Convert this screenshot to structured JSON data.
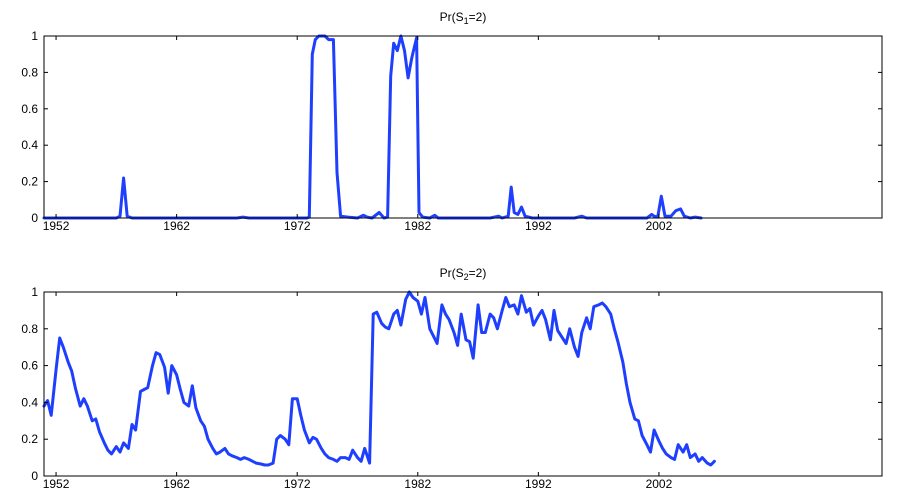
{
  "chart_data": [
    {
      "type": "line",
      "title": "Pr(S",
      "title_sub": "1",
      "title_end": "=2)",
      "xlabel": "",
      "ylabel": "",
      "xlim": [
        1951,
        2020.5
      ],
      "ylim": [
        0,
        1
      ],
      "x_ticks": [
        1952,
        1962,
        1972,
        1982,
        1992,
        2002
      ],
      "x_tick_labels": [
        "1952",
        "1962",
        "1972",
        "1982",
        "1992",
        "2002"
      ],
      "y_ticks": [
        0,
        0.2,
        0.4,
        0.6,
        0.8,
        1
      ],
      "y_tick_labels": [
        "0",
        "0.2",
        "0.4",
        "0.6",
        "0.8",
        "1"
      ],
      "grid": false,
      "color": "#1f3fff",
      "points": [
        [
          1951.0,
          0
        ],
        [
          1955.0,
          0
        ],
        [
          1957.0,
          0
        ],
        [
          1957.3,
          0.01
        ],
        [
          1957.6,
          0.22
        ],
        [
          1957.9,
          0.01
        ],
        [
          1958.3,
          0
        ],
        [
          1962.0,
          0
        ],
        [
          1967.0,
          0
        ],
        [
          1967.5,
          0.005
        ],
        [
          1968.0,
          0
        ],
        [
          1972.8,
          0
        ],
        [
          1973.0,
          0.005
        ],
        [
          1973.25,
          0.9
        ],
        [
          1973.5,
          0.98
        ],
        [
          1973.8,
          1.0
        ],
        [
          1974.0,
          1.0
        ],
        [
          1974.3,
          1.0
        ],
        [
          1974.6,
          0.98
        ],
        [
          1975.0,
          0.98
        ],
        [
          1975.3,
          0.25
        ],
        [
          1975.6,
          0.01
        ],
        [
          1976.2,
          0.005
        ],
        [
          1977.0,
          0
        ],
        [
          1977.5,
          0.015
        ],
        [
          1977.8,
          0.005
        ],
        [
          1978.2,
          0
        ],
        [
          1978.8,
          0.03
        ],
        [
          1979.2,
          0
        ],
        [
          1979.5,
          0.005
        ],
        [
          1979.75,
          0.78
        ],
        [
          1980.0,
          0.96
        ],
        [
          1980.3,
          0.92
        ],
        [
          1980.6,
          1.0
        ],
        [
          1980.9,
          0.92
        ],
        [
          1981.2,
          0.77
        ],
        [
          1981.5,
          0.88
        ],
        [
          1981.9,
          0.99
        ],
        [
          1982.1,
          0.03
        ],
        [
          1982.4,
          0.005
        ],
        [
          1983.0,
          0
        ],
        [
          1983.4,
          0.015
        ],
        [
          1983.7,
          0
        ],
        [
          1985.0,
          0
        ],
        [
          1988.0,
          0
        ],
        [
          1988.7,
          0.01
        ],
        [
          1989.0,
          0
        ],
        [
          1989.5,
          0.01
        ],
        [
          1989.75,
          0.17
        ],
        [
          1990.0,
          0.03
        ],
        [
          1990.3,
          0.02
        ],
        [
          1990.6,
          0.06
        ],
        [
          1990.9,
          0.01
        ],
        [
          1991.5,
          0
        ],
        [
          1995.0,
          0
        ],
        [
          1995.6,
          0.01
        ],
        [
          1996.0,
          0
        ],
        [
          2001.0,
          0
        ],
        [
          2001.4,
          0.02
        ],
        [
          2001.6,
          0.01
        ],
        [
          2001.9,
          0.005
        ],
        [
          2002.2,
          0.12
        ],
        [
          2002.5,
          0.01
        ],
        [
          2003.0,
          0.01
        ],
        [
          2003.4,
          0.04
        ],
        [
          2003.8,
          0.05
        ],
        [
          2004.1,
          0.01
        ],
        [
          2004.6,
          0
        ],
        [
          2005.0,
          0.005
        ],
        [
          2005.5,
          0
        ]
      ]
    },
    {
      "type": "line",
      "title": "Pr(S",
      "title_sub": "2",
      "title_end": "=2)",
      "xlabel": "",
      "ylabel": "",
      "xlim": [
        1951,
        2020.5
      ],
      "ylim": [
        0,
        1
      ],
      "x_ticks": [
        1952,
        1962,
        1972,
        1982,
        1992,
        2002
      ],
      "x_tick_labels": [
        "1952",
        "1962",
        "1972",
        "1982",
        "1992",
        "2002"
      ],
      "y_ticks": [
        0,
        0.2,
        0.4,
        0.6,
        0.8,
        1
      ],
      "y_tick_labels": [
        "0",
        "0.2",
        "0.4",
        "0.6",
        "0.8",
        "1"
      ],
      "grid": false,
      "color": "#1f3fff",
      "points": [
        [
          1951.0,
          0.38
        ],
        [
          1951.3,
          0.41
        ],
        [
          1951.6,
          0.33
        ],
        [
          1952.0,
          0.58
        ],
        [
          1952.3,
          0.75
        ],
        [
          1952.6,
          0.7
        ],
        [
          1953.0,
          0.62
        ],
        [
          1953.3,
          0.57
        ],
        [
          1953.6,
          0.48
        ],
        [
          1954.0,
          0.38
        ],
        [
          1954.3,
          0.42
        ],
        [
          1954.6,
          0.38
        ],
        [
          1955.0,
          0.3
        ],
        [
          1955.3,
          0.31
        ],
        [
          1955.6,
          0.24
        ],
        [
          1956.0,
          0.18
        ],
        [
          1956.3,
          0.14
        ],
        [
          1956.6,
          0.12
        ],
        [
          1957.0,
          0.16
        ],
        [
          1957.3,
          0.13
        ],
        [
          1957.6,
          0.18
        ],
        [
          1958.0,
          0.15
        ],
        [
          1958.3,
          0.28
        ],
        [
          1958.6,
          0.25
        ],
        [
          1959.0,
          0.46
        ],
        [
          1959.3,
          0.47
        ],
        [
          1959.6,
          0.48
        ],
        [
          1960.0,
          0.6
        ],
        [
          1960.3,
          0.67
        ],
        [
          1960.6,
          0.66
        ],
        [
          1961.0,
          0.59
        ],
        [
          1961.3,
          0.45
        ],
        [
          1961.6,
          0.6
        ],
        [
          1962.0,
          0.55
        ],
        [
          1962.3,
          0.47
        ],
        [
          1962.6,
          0.4
        ],
        [
          1963.0,
          0.38
        ],
        [
          1963.3,
          0.49
        ],
        [
          1963.6,
          0.37
        ],
        [
          1964.0,
          0.3
        ],
        [
          1964.3,
          0.27
        ],
        [
          1964.6,
          0.2
        ],
        [
          1965.0,
          0.15
        ],
        [
          1965.3,
          0.12
        ],
        [
          1965.6,
          0.13
        ],
        [
          1966.0,
          0.15
        ],
        [
          1966.3,
          0.12
        ],
        [
          1966.6,
          0.11
        ],
        [
          1967.0,
          0.1
        ],
        [
          1967.3,
          0.09
        ],
        [
          1967.6,
          0.1
        ],
        [
          1968.0,
          0.09
        ],
        [
          1968.3,
          0.08
        ],
        [
          1968.6,
          0.07
        ],
        [
          1969.0,
          0.065
        ],
        [
          1969.3,
          0.06
        ],
        [
          1969.6,
          0.06
        ],
        [
          1970.0,
          0.07
        ],
        [
          1970.3,
          0.2
        ],
        [
          1970.6,
          0.22
        ],
        [
          1971.0,
          0.2
        ],
        [
          1971.3,
          0.17
        ],
        [
          1971.6,
          0.42
        ],
        [
          1972.0,
          0.42
        ],
        [
          1972.3,
          0.33
        ],
        [
          1972.6,
          0.25
        ],
        [
          1973.0,
          0.18
        ],
        [
          1973.3,
          0.21
        ],
        [
          1973.6,
          0.2
        ],
        [
          1974.0,
          0.15
        ],
        [
          1974.3,
          0.12
        ],
        [
          1974.6,
          0.1
        ],
        [
          1975.0,
          0.09
        ],
        [
          1975.3,
          0.08
        ],
        [
          1975.6,
          0.1
        ],
        [
          1976.0,
          0.1
        ],
        [
          1976.3,
          0.09
        ],
        [
          1976.6,
          0.14
        ],
        [
          1977.0,
          0.1
        ],
        [
          1977.3,
          0.08
        ],
        [
          1977.6,
          0.15
        ],
        [
          1978.0,
          0.07
        ],
        [
          1978.3,
          0.88
        ],
        [
          1978.6,
          0.89
        ],
        [
          1979.0,
          0.83
        ],
        [
          1979.3,
          0.81
        ],
        [
          1979.6,
          0.8
        ],
        [
          1980.0,
          0.88
        ],
        [
          1980.3,
          0.9
        ],
        [
          1980.6,
          0.82
        ],
        [
          1981.0,
          0.96
        ],
        [
          1981.3,
          1.0
        ],
        [
          1981.6,
          0.97
        ],
        [
          1982.0,
          0.95
        ],
        [
          1982.3,
          0.88
        ],
        [
          1982.6,
          0.97
        ],
        [
          1983.0,
          0.8
        ],
        [
          1983.3,
          0.76
        ],
        [
          1983.6,
          0.72
        ],
        [
          1984.0,
          0.93
        ],
        [
          1984.3,
          0.88
        ],
        [
          1984.6,
          0.85
        ],
        [
          1985.0,
          0.78
        ],
        [
          1985.3,
          0.71
        ],
        [
          1985.6,
          0.88
        ],
        [
          1986.0,
          0.74
        ],
        [
          1986.3,
          0.73
        ],
        [
          1986.6,
          0.64
        ],
        [
          1987.0,
          0.93
        ],
        [
          1987.3,
          0.78
        ],
        [
          1987.6,
          0.78
        ],
        [
          1988.0,
          0.88
        ],
        [
          1988.3,
          0.86
        ],
        [
          1988.6,
          0.8
        ],
        [
          1989.0,
          0.9
        ],
        [
          1989.3,
          0.97
        ],
        [
          1989.6,
          0.92
        ],
        [
          1990.0,
          0.93
        ],
        [
          1990.3,
          0.88
        ],
        [
          1990.6,
          0.98
        ],
        [
          1991.0,
          0.89
        ],
        [
          1991.3,
          0.91
        ],
        [
          1991.6,
          0.82
        ],
        [
          1992.0,
          0.87
        ],
        [
          1992.3,
          0.9
        ],
        [
          1992.6,
          0.85
        ],
        [
          1993.0,
          0.74
        ],
        [
          1993.3,
          0.9
        ],
        [
          1993.6,
          0.79
        ],
        [
          1994.0,
          0.75
        ],
        [
          1994.3,
          0.72
        ],
        [
          1994.6,
          0.8
        ],
        [
          1995.0,
          0.7
        ],
        [
          1995.3,
          0.65
        ],
        [
          1995.6,
          0.78
        ],
        [
          1996.0,
          0.86
        ],
        [
          1996.3,
          0.8
        ],
        [
          1996.6,
          0.92
        ],
        [
          1997.0,
          0.93
        ],
        [
          1997.3,
          0.94
        ],
        [
          1997.6,
          0.92
        ],
        [
          1998.0,
          0.88
        ],
        [
          1998.3,
          0.8
        ],
        [
          1998.6,
          0.73
        ],
        [
          1999.0,
          0.62
        ],
        [
          1999.3,
          0.5
        ],
        [
          1999.6,
          0.4
        ],
        [
          2000.0,
          0.31
        ],
        [
          2000.3,
          0.3
        ],
        [
          2000.6,
          0.22
        ],
        [
          2001.0,
          0.17
        ],
        [
          2001.3,
          0.13
        ],
        [
          2001.6,
          0.25
        ],
        [
          2002.0,
          0.19
        ],
        [
          2002.3,
          0.15
        ],
        [
          2002.6,
          0.12
        ],
        [
          2003.0,
          0.1
        ],
        [
          2003.3,
          0.09
        ],
        [
          2003.6,
          0.17
        ],
        [
          2004.0,
          0.13
        ],
        [
          2004.3,
          0.17
        ],
        [
          2004.6,
          0.1
        ],
        [
          2005.0,
          0.12
        ],
        [
          2005.3,
          0.08
        ],
        [
          2005.6,
          0.1
        ],
        [
          2006.0,
          0.07
        ],
        [
          2006.3,
          0.06
        ],
        [
          2006.6,
          0.08
        ]
      ]
    }
  ]
}
